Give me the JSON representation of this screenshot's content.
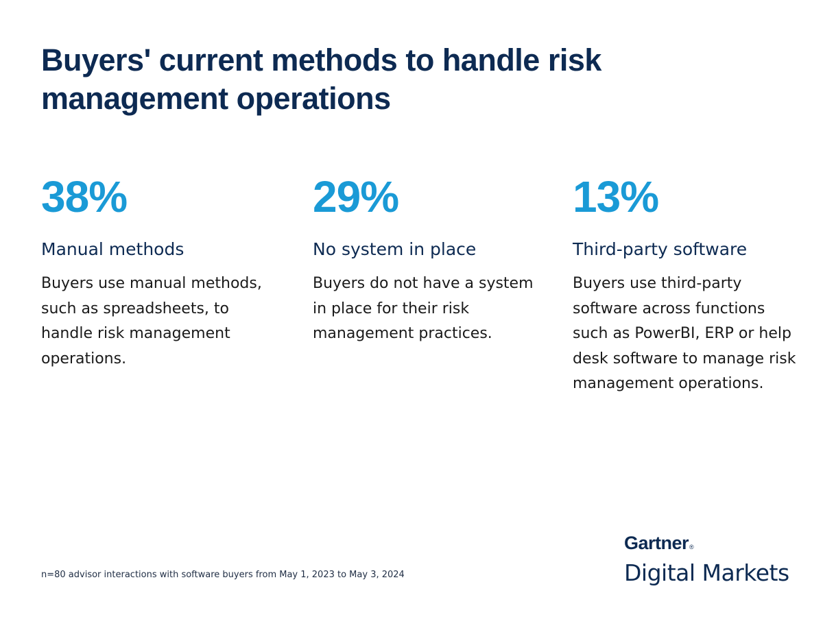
{
  "title": "Buyers' current methods to handle risk management operations",
  "stats": [
    {
      "value": "38%",
      "label": "Manual methods",
      "description": "Buyers use manual methods, such as spreadsheets, to handle risk management operations."
    },
    {
      "value": "29%",
      "label": "No system in place",
      "description": "Buyers do not have a system in place for their risk management practices."
    },
    {
      "value": "13%",
      "label": "Third-party software",
      "description": "Buyers use third-party software across functions such as PowerBI, ERP or help desk software to manage risk management operations."
    }
  ],
  "footnote": "n=80 advisor interactions with software buyers from May 1, 2023 to May 3, 2024",
  "brand": {
    "name": "Gartner",
    "registered": "®",
    "sub": "Digital Markets"
  },
  "colors": {
    "title": "#0d2a52",
    "accent": "#1a9ad6",
    "body_text": "#1a1a1a"
  }
}
